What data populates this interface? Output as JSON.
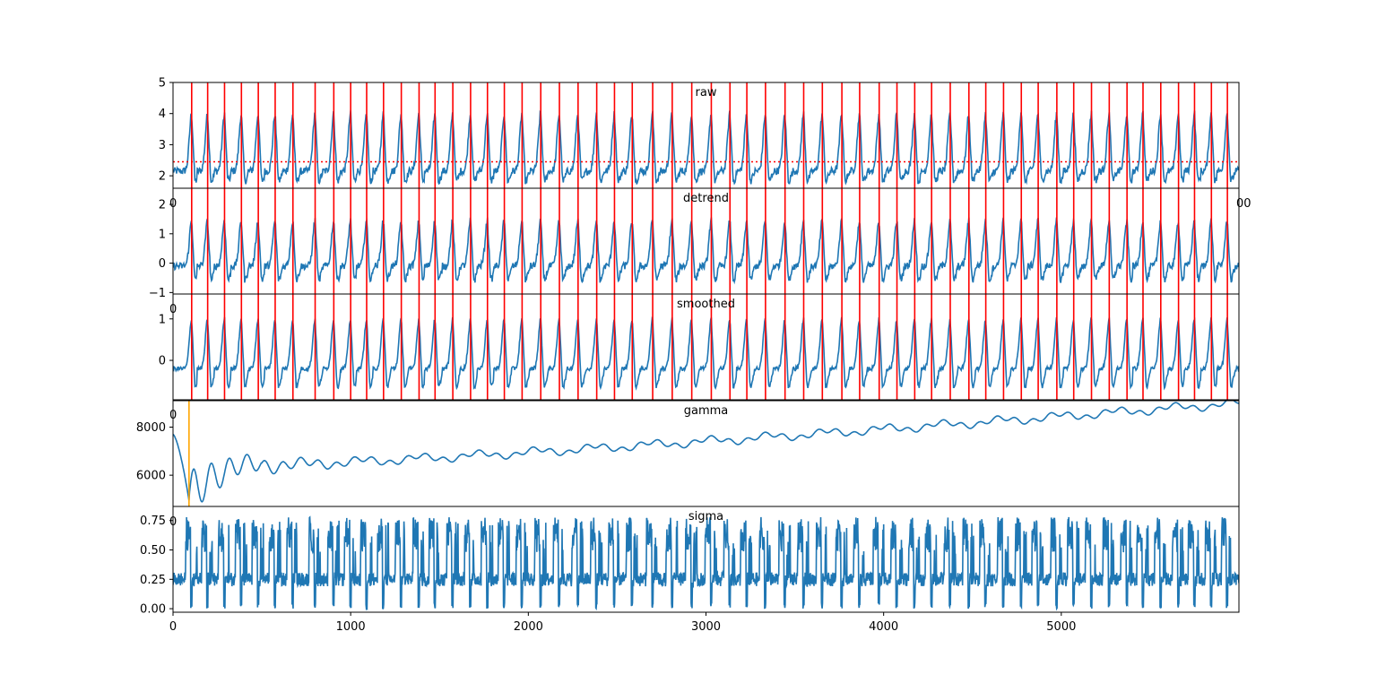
{
  "chart_data": [
    {
      "type": "line",
      "title": "raw",
      "xlim": [
        0,
        6000
      ],
      "ylim": [
        1.6,
        5.0
      ],
      "yticks": [
        2,
        3,
        4,
        5
      ],
      "ytick_labels": [
        "2",
        "3",
        "4",
        "5"
      ],
      "xtick_labels_visible": [
        "0",
        "00"
      ],
      "threshold": 2.45,
      "peak_times": [
        105,
        195,
        290,
        385,
        480,
        575,
        675,
        800,
        905,
        1000,
        1090,
        1185,
        1285,
        1385,
        1475,
        1575,
        1675,
        1770,
        1865,
        1965,
        2070,
        2175,
        2280,
        2385,
        2485,
        2585,
        2700,
        2810,
        2920,
        3030,
        3135,
        3230,
        3335,
        3445,
        3550,
        3655,
        3765,
        3865,
        3975,
        4075,
        4175,
        4270,
        4375,
        4480,
        4575,
        4675,
        4775,
        4870,
        4975,
        5070,
        5170,
        5270,
        5370,
        5460,
        5560,
        5660,
        5750,
        5845,
        5935
      ],
      "series": [
        {
          "baseline": 2.15,
          "peak": 4.0,
          "trough": 1.85,
          "noise": 0.12
        }
      ]
    },
    {
      "type": "line",
      "title": "detrend",
      "xlim": [
        0,
        6000
      ],
      "ylim": [
        -1.05,
        2.55
      ],
      "yticks": [
        -1,
        0,
        1,
        2
      ],
      "ytick_labels": [
        "−1",
        "0",
        "1",
        "2"
      ],
      "xtick_labels_visible": [
        "0"
      ],
      "series": [
        {
          "baseline": -0.1,
          "peak": 1.45,
          "trough": -0.55,
          "noise": 0.12
        }
      ]
    },
    {
      "type": "line",
      "title": "smoothed",
      "xlim": [
        0,
        6000
      ],
      "ylim": [
        -0.95,
        1.6
      ],
      "yticks": [
        0,
        1
      ],
      "ytick_labels": [
        "0",
        "1"
      ],
      "xtick_labels_visible": [
        "0"
      ],
      "series": [
        {
          "baseline": -0.2,
          "peak": 1.0,
          "trough": -0.62,
          "noise": 0.05
        }
      ]
    },
    {
      "type": "line",
      "title": "gamma",
      "xlim": [
        0,
        6000
      ],
      "ylim": [
        4700,
        9100
      ],
      "yticks": [
        6000,
        8000
      ],
      "ytick_labels": [
        "6000",
        "8000"
      ],
      "xtick_labels_visible": [
        "0"
      ],
      "marker_line_x": 90,
      "series": [
        {
          "start": 7700,
          "min_at": 90,
          "min": 4950,
          "end": 9000
        }
      ]
    },
    {
      "type": "line",
      "title": "sigma",
      "xlim": [
        0,
        6000
      ],
      "ylim": [
        -0.03,
        0.87
      ],
      "yticks": [
        0.0,
        0.25,
        0.5,
        0.75
      ],
      "ytick_labels": [
        "0.00",
        "0.25",
        "0.50",
        "0.75"
      ],
      "xticks": [
        0,
        1000,
        2000,
        3000,
        4000,
        5000
      ],
      "xtick_labels": [
        "0",
        "1000",
        "2000",
        "3000",
        "4000",
        "5000"
      ],
      "series": [
        {
          "baseline": 0.25,
          "high": 0.78,
          "low": 0.0
        }
      ]
    }
  ],
  "colors": {
    "series": "#1f77b4",
    "peaks": "#ff0000",
    "threshold": "#ff0000",
    "marker": "#ffa500"
  }
}
